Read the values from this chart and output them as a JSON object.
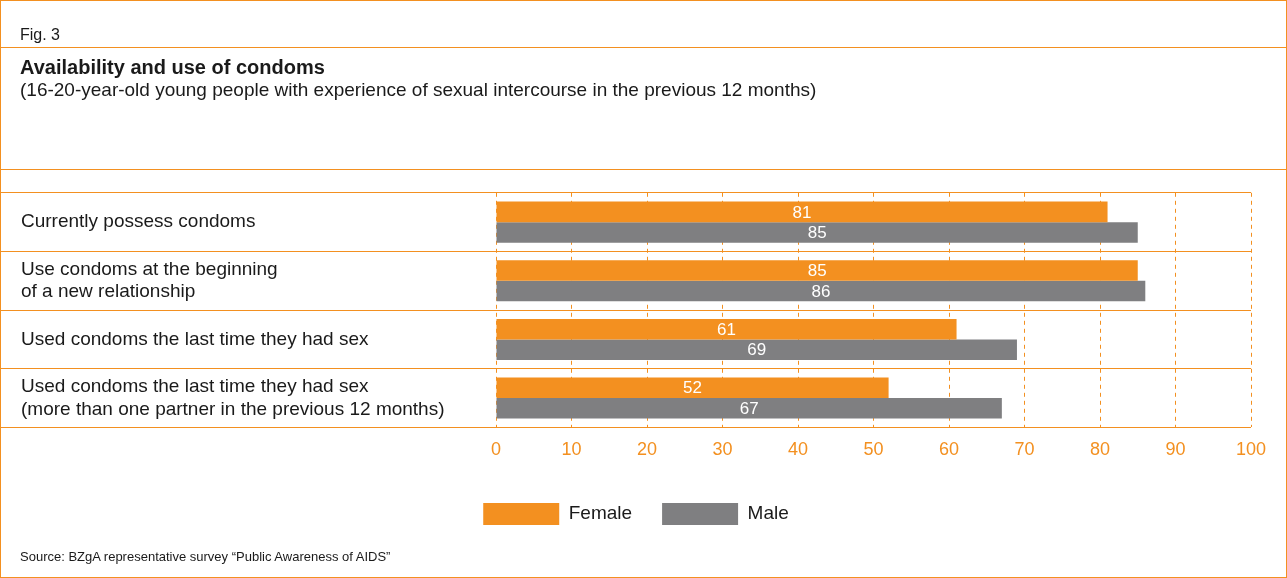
{
  "chart_data": {
    "type": "bar",
    "orientation": "horizontal",
    "title": "Availability and use of condoms",
    "subtitle": "(16-20-year-old young people with experience of sexual intercourse in the previous 12 months)",
    "categories": [
      "Currently possess condoms",
      "Use condoms at the beginning\nof a new relationship",
      "Used condoms the last time they had sex",
      "Used condoms the last time they had sex\n(more than one partner in the previous 12 months)"
    ],
    "series": [
      {
        "name": "Female",
        "color": "#f39020",
        "values": [
          81,
          85,
          61,
          52
        ]
      },
      {
        "name": "Male",
        "color": "#7f7f81",
        "values": [
          85,
          86,
          69,
          67
        ]
      }
    ],
    "xlim": [
      0,
      100
    ],
    "xticks": [
      0,
      10,
      20,
      30,
      40,
      50,
      60,
      70,
      80,
      90,
      100
    ],
    "grid": true,
    "legend": "bottom",
    "data_labels": true,
    "annotations": [
      "Fig. 3",
      "Source: BZgA representative survey “Public Awareness of AIDS”"
    ]
  }
}
